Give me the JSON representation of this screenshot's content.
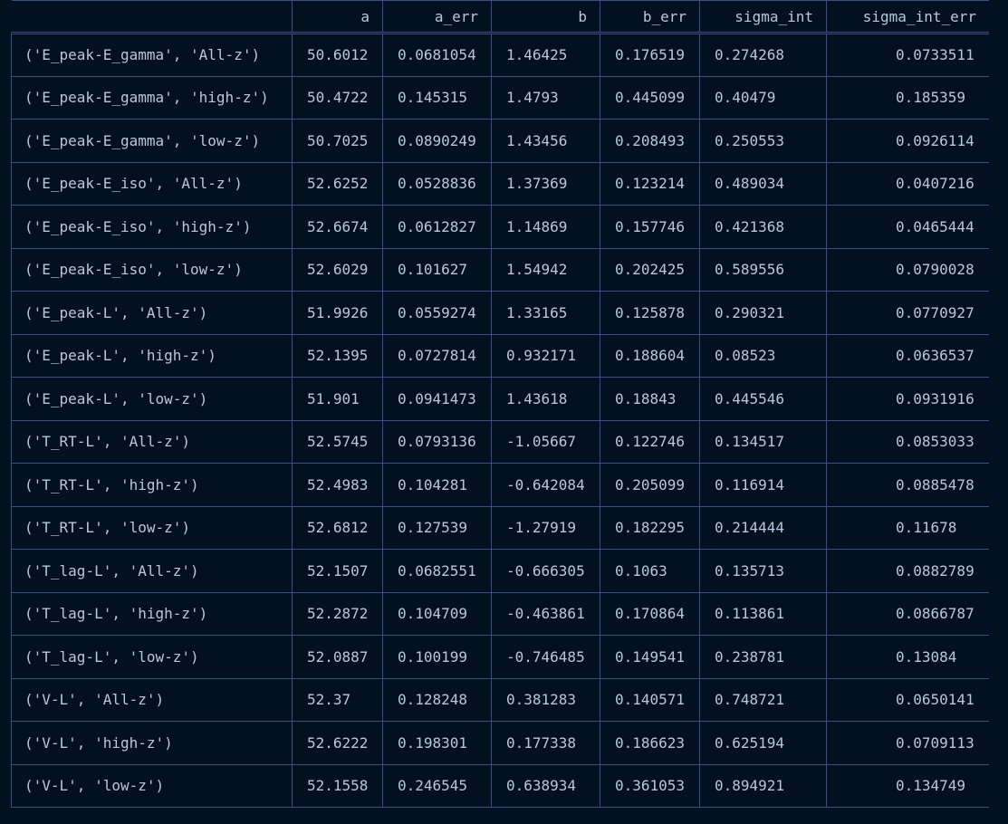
{
  "table": {
    "columns": [
      "",
      "a",
      "a_err",
      "b",
      "b_err",
      "sigma_int",
      "sigma_int_err"
    ],
    "rows": [
      [
        "('E_peak-E_gamma', 'All-z')",
        "50.6012",
        "0.0681054",
        "1.46425",
        "0.176519",
        "0.274268",
        "0.0733511"
      ],
      [
        "('E_peak-E_gamma', 'high-z')",
        "50.4722",
        "0.145315",
        "1.4793",
        "0.445099",
        "0.40479",
        "0.185359"
      ],
      [
        "('E_peak-E_gamma', 'low-z')",
        "50.7025",
        "0.0890249",
        "1.43456",
        "0.208493",
        "0.250553",
        "0.0926114"
      ],
      [
        "('E_peak-E_iso', 'All-z')",
        "52.6252",
        "0.0528836",
        "1.37369",
        "0.123214",
        "0.489034",
        "0.0407216"
      ],
      [
        "('E_peak-E_iso', 'high-z')",
        "52.6674",
        "0.0612827",
        "1.14869",
        "0.157746",
        "0.421368",
        "0.0465444"
      ],
      [
        "('E_peak-E_iso', 'low-z')",
        "52.6029",
        "0.101627",
        "1.54942",
        "0.202425",
        "0.589556",
        "0.0790028"
      ],
      [
        "('E_peak-L', 'All-z')",
        "51.9926",
        "0.0559274",
        "1.33165",
        "0.125878",
        "0.290321",
        "0.0770927"
      ],
      [
        "('E_peak-L', 'high-z')",
        "52.1395",
        "0.0727814",
        "0.932171",
        "0.188604",
        "0.08523",
        "0.0636537"
      ],
      [
        "('E_peak-L', 'low-z')",
        "51.901",
        "0.0941473",
        "1.43618",
        "0.18843",
        "0.445546",
        "0.0931916"
      ],
      [
        "('T_RT-L', 'All-z')",
        "52.5745",
        "0.0793136",
        "-1.05667",
        "0.122746",
        "0.134517",
        "0.0853033"
      ],
      [
        "('T_RT-L', 'high-z')",
        "52.4983",
        "0.104281",
        "-0.642084",
        "0.205099",
        "0.116914",
        "0.0885478"
      ],
      [
        "('T_RT-L', 'low-z')",
        "52.6812",
        "0.127539",
        "-1.27919",
        "0.182295",
        "0.214444",
        "0.11678"
      ],
      [
        "('T_lag-L', 'All-z')",
        "52.1507",
        "0.0682551",
        "-0.666305",
        "0.1063",
        "0.135713",
        "0.0882789"
      ],
      [
        "('T_lag-L', 'high-z')",
        "52.2872",
        "0.104709",
        "-0.463861",
        "0.170864",
        "0.113861",
        "0.0866787"
      ],
      [
        "('T_lag-L', 'low-z')",
        "52.0887",
        "0.100199",
        "-0.746485",
        "0.149541",
        "0.238781",
        "0.13084"
      ],
      [
        "('V-L', 'All-z')",
        "52.37",
        "0.128248",
        "0.381283",
        "0.140571",
        "0.748721",
        "0.0650141"
      ],
      [
        "('V-L', 'high-z')",
        "52.6222",
        "0.198301",
        "0.177338",
        "0.186623",
        "0.625194",
        "0.0709113"
      ],
      [
        "('V-L', 'low-z')",
        "52.1558",
        "0.246545",
        "0.638934",
        "0.361053",
        "0.894921",
        "0.134749"
      ]
    ]
  }
}
